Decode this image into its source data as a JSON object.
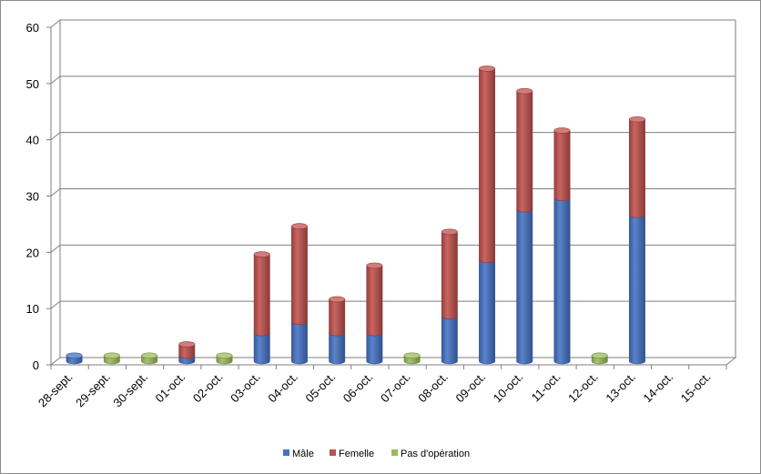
{
  "chart_data": {
    "type": "bar",
    "stacked": true,
    "style": "3d-cylinder",
    "categories": [
      "28-sept.",
      "29-sept.",
      "30-sept.",
      "01-oct.",
      "02-oct.",
      "03-oct.",
      "04-oct.",
      "05-oct.",
      "06-oct.",
      "07-oct.",
      "08-oct.",
      "09-oct.",
      "10-oct.",
      "11-oct.",
      "12-oct.",
      "13-oct.",
      "14-oct.",
      "15-oct."
    ],
    "series": [
      {
        "name": "Mâle",
        "color": "#4472c4",
        "values": [
          1,
          0,
          0,
          1,
          0,
          5,
          7,
          5,
          5,
          0,
          8,
          18,
          27,
          29,
          0,
          26,
          0,
          0
        ]
      },
      {
        "name": "Femelle",
        "color": "#c0504d",
        "values": [
          0,
          0,
          0,
          2,
          0,
          14,
          17,
          6,
          12,
          0,
          15,
          34,
          21,
          12,
          0,
          17,
          0,
          0
        ]
      },
      {
        "name": "Pas d'opération",
        "color": "#9bbb59",
        "values": [
          0,
          1,
          1,
          0,
          1,
          0,
          0,
          0,
          0,
          1,
          0,
          0,
          0,
          0,
          1,
          0,
          0,
          0
        ]
      }
    ],
    "ylim": [
      0,
      60
    ],
    "yticks": [
      0,
      10,
      20,
      30,
      40,
      50,
      60
    ],
    "grid": true,
    "legend_position": "bottom",
    "title": "",
    "xlabel": "",
    "ylabel": ""
  }
}
